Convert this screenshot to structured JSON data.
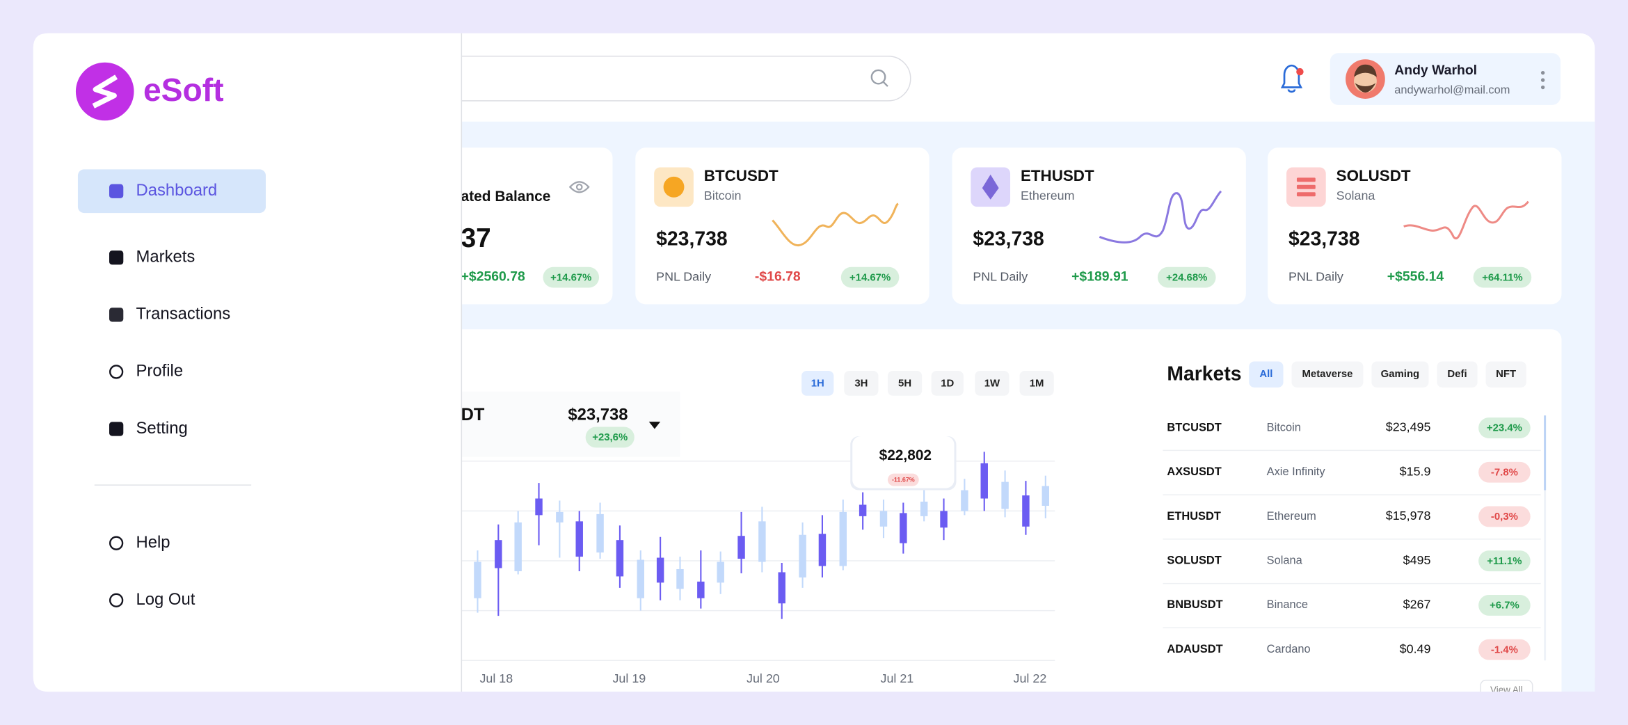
{
  "brand": "eSoft",
  "nav": [
    "Dashboard",
    "Markets",
    "Transactions",
    "Profile",
    "Setting"
  ],
  "nav_bottom": [
    "Help",
    "Log Out"
  ],
  "user": {
    "name": "Andy Warhol",
    "email": "andywarhol@mail.com"
  },
  "balance_card": {
    "title": "ated Balance",
    "value": "37",
    "pnl": "+$2560.78",
    "change": "+14.67%"
  },
  "cards": [
    {
      "symbol": "BTCUSDT",
      "name": "Bitcoin",
      "price": "$23,738",
      "pnl_label": "PNL Daily",
      "pnl": "-$16.78",
      "change": "+14.67%"
    },
    {
      "symbol": "ETHUSDT",
      "name": "Ethereum",
      "price": "$23,738",
      "pnl_label": "PNL Daily",
      "pnl": "+$189.91",
      "change": "+24.68%"
    },
    {
      "symbol": "SOLUSDT",
      "name": "Solana",
      "price": "$23,738",
      "pnl_label": "PNL Daily",
      "pnl": "+$556.14",
      "change": "+64.11%"
    }
  ],
  "chart": {
    "pair": "DT",
    "price": "$23,738",
    "change": "+23,6%",
    "timeframes": [
      "1H",
      "3H",
      "5H",
      "1D",
      "1W",
      "1M"
    ],
    "tooltip": {
      "price": "$22,802",
      "change": "-11.67%"
    },
    "x_labels": [
      "Jul 18",
      "Jul 19",
      "Jul 20",
      "Jul 21",
      "Jul 22"
    ]
  },
  "markets": {
    "title": "Markets",
    "tabs": [
      "All",
      "Metaverse",
      "Gaming",
      "Defi",
      "NFT"
    ],
    "rows": [
      [
        "BTCUSDT",
        "Bitcoin",
        "$23,495",
        "+23.4%"
      ],
      [
        "AXSUSDT",
        "Axie Infinity",
        "$15.9",
        "-7.8%"
      ],
      [
        "ETHUSDT",
        "Ethereum",
        "$15,978",
        "-0,3%"
      ],
      [
        "SOLUSDT",
        "Solana",
        "$495",
        "+11.1%"
      ],
      [
        "BNBUSDT",
        "Binance",
        "$267",
        "+6.7%"
      ],
      [
        "ADAUSDT",
        "Cardano",
        "$0.49",
        "-1.4%"
      ]
    ],
    "view_all": "View All"
  }
}
